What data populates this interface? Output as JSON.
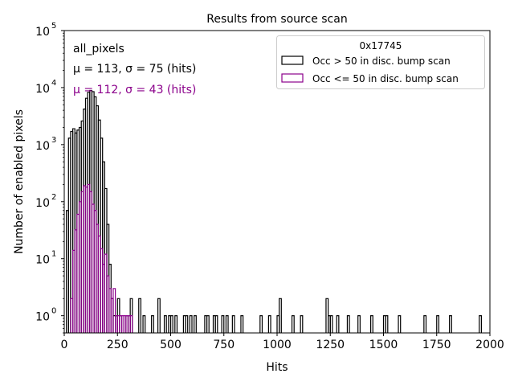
{
  "chart_data": {
    "type": "histogram",
    "title": "Results from source scan",
    "xlabel": "Hits",
    "ylabel": "Number of enabled pixels",
    "yscale": "log",
    "xlim": [
      0,
      2000
    ],
    "ylim": [
      0.5,
      100000
    ],
    "xticks": [
      0,
      250,
      500,
      750,
      1000,
      1250,
      1500,
      1750,
      2000
    ],
    "xtick_labels": [
      "0",
      "250",
      "500",
      "750",
      "1000",
      "1250",
      "1500",
      "1750",
      "2000"
    ],
    "yticks": [
      1,
      10,
      100,
      1000,
      10000,
      100000
    ],
    "ytick_labels": [
      "10",
      "10",
      "10",
      "10",
      "10",
      "10"
    ],
    "ytick_exponents": [
      "0",
      "1",
      "2",
      "3",
      "4",
      "5"
    ],
    "bin_width": 10,
    "annotations": {
      "name": "all_pixels",
      "stats_line_1": "μ = 113, σ = 75 (hits)",
      "stats_line_2": "μ = 112, σ = 43 (hits)"
    },
    "legend": {
      "title": "0x17745",
      "location": "top-right",
      "entries": [
        {
          "label": "Occ > 50 in disc. bump scan",
          "color": "#000000"
        },
        {
          "label": "Occ <= 50 in disc. bump scan",
          "color": "#8b008b"
        }
      ]
    },
    "series": [
      {
        "name": "Occ > 50 in disc. bump scan",
        "color": "#000000",
        "bins": [
          [
            10,
            70
          ],
          [
            20,
            1300
          ],
          [
            30,
            1700
          ],
          [
            40,
            1900
          ],
          [
            50,
            1600
          ],
          [
            60,
            1800
          ],
          [
            70,
            2000
          ],
          [
            80,
            2600
          ],
          [
            90,
            4200
          ],
          [
            100,
            6500
          ],
          [
            110,
            8300
          ],
          [
            120,
            8900
          ],
          [
            130,
            8500
          ],
          [
            140,
            6900
          ],
          [
            150,
            4800
          ],
          [
            160,
            2700
          ],
          [
            170,
            1300
          ],
          [
            180,
            500
          ],
          [
            190,
            170
          ],
          [
            200,
            40
          ],
          [
            210,
            8
          ],
          [
            220,
            2
          ],
          [
            230,
            1
          ],
          [
            240,
            1
          ],
          [
            250,
            2
          ],
          [
            260,
            1
          ],
          [
            290,
            1
          ],
          [
            300,
            1
          ],
          [
            310,
            2
          ],
          [
            350,
            2
          ],
          [
            370,
            1
          ],
          [
            410,
            1
          ],
          [
            440,
            2
          ],
          [
            470,
            1
          ],
          [
            490,
            1
          ],
          [
            500,
            1
          ],
          [
            520,
            1
          ],
          [
            560,
            1
          ],
          [
            570,
            1
          ],
          [
            590,
            1
          ],
          [
            610,
            1
          ],
          [
            660,
            1
          ],
          [
            670,
            1
          ],
          [
            700,
            1
          ],
          [
            710,
            1
          ],
          [
            740,
            1
          ],
          [
            760,
            1
          ],
          [
            790,
            1
          ],
          [
            830,
            1
          ],
          [
            920,
            1
          ],
          [
            960,
            1
          ],
          [
            1000,
            1
          ],
          [
            1010,
            2
          ],
          [
            1070,
            1
          ],
          [
            1110,
            1
          ],
          [
            1230,
            2
          ],
          [
            1240,
            1
          ],
          [
            1250,
            1
          ],
          [
            1280,
            1
          ],
          [
            1330,
            1
          ],
          [
            1380,
            1
          ],
          [
            1440,
            1
          ],
          [
            1500,
            1
          ],
          [
            1510,
            1
          ],
          [
            1570,
            1
          ],
          [
            1690,
            1
          ],
          [
            1750,
            1
          ],
          [
            1810,
            1
          ],
          [
            1950,
            1
          ]
        ]
      },
      {
        "name": "Occ <= 50 in disc. bump scan",
        "color": "#8b008b",
        "bins": [
          [
            30,
            2
          ],
          [
            40,
            14
          ],
          [
            50,
            32
          ],
          [
            60,
            60
          ],
          [
            70,
            100
          ],
          [
            80,
            150
          ],
          [
            90,
            190
          ],
          [
            100,
            180
          ],
          [
            110,
            200
          ],
          [
            120,
            150
          ],
          [
            130,
            90
          ],
          [
            140,
            70
          ],
          [
            150,
            40
          ],
          [
            160,
            25
          ],
          [
            170,
            15
          ],
          [
            180,
            8
          ],
          [
            190,
            12
          ],
          [
            200,
            5
          ],
          [
            210,
            3
          ],
          [
            220,
            2
          ],
          [
            230,
            3
          ],
          [
            240,
            1
          ],
          [
            250,
            1
          ],
          [
            260,
            1
          ],
          [
            270,
            1
          ],
          [
            280,
            1
          ],
          [
            290,
            1
          ],
          [
            300,
            1
          ],
          [
            310,
            1
          ]
        ]
      }
    ]
  }
}
